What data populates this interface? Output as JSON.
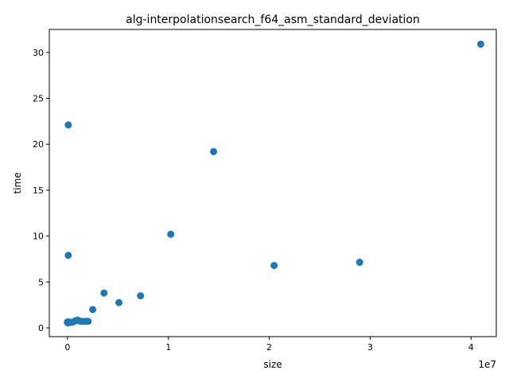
{
  "chart_data": {
    "type": "scatter",
    "title": "alg-interpolationsearch_f64_asm_standard_deviation",
    "xlabel": "size",
    "ylabel": "time",
    "x_offset_label": "1e7",
    "xlim": [
      -0.18,
      4.25
    ],
    "ylim": [
      -0.95,
      32.5
    ],
    "x_ticks": [
      0,
      1,
      2,
      3,
      4
    ],
    "x_tick_labels": [
      "0",
      "1",
      "2",
      "3",
      "4"
    ],
    "y_ticks": [
      0,
      5,
      10,
      15,
      20,
      25,
      30
    ],
    "y_tick_labels": [
      "0",
      "5",
      "10",
      "15",
      "20",
      "25",
      "30"
    ],
    "grid": false,
    "marker_color": "#1f77b4",
    "points": [
      {
        "x": 0.0001,
        "y": 0.65
      },
      {
        "x": 0.0002,
        "y": 0.62
      },
      {
        "x": 0.0004,
        "y": 0.6
      },
      {
        "x": 0.0008,
        "y": 0.58
      },
      {
        "x": 0.0016,
        "y": 0.6
      },
      {
        "x": 0.0032,
        "y": 0.62
      },
      {
        "x": 0.0064,
        "y": 0.55
      },
      {
        "x": 0.0128,
        "y": 0.6
      },
      {
        "x": 0.02,
        "y": 0.65
      },
      {
        "x": 0.0256,
        "y": 0.6
      },
      {
        "x": 0.0512,
        "y": 0.62
      },
      {
        "x": 0.0081,
        "y": 22.1
      },
      {
        "x": 0.0081,
        "y": 7.9
      },
      {
        "x": 0.0724,
        "y": 0.75
      },
      {
        "x": 0.1,
        "y": 0.8
      },
      {
        "x": 0.1,
        "y": 0.85
      },
      {
        "x": 0.12,
        "y": 0.75
      },
      {
        "x": 0.1448,
        "y": 0.7
      },
      {
        "x": 0.18,
        "y": 0.72
      },
      {
        "x": 0.2048,
        "y": 0.72
      },
      {
        "x": 0.25,
        "y": 2.0
      },
      {
        "x": 0.362,
        "y": 3.8
      },
      {
        "x": 0.51,
        "y": 2.75
      },
      {
        "x": 0.724,
        "y": 3.5
      },
      {
        "x": 1.024,
        "y": 10.2
      },
      {
        "x": 1.448,
        "y": 19.2
      },
      {
        "x": 2.048,
        "y": 6.8
      },
      {
        "x": 2.896,
        "y": 7.15
      },
      {
        "x": 4.096,
        "y": 30.9
      }
    ]
  }
}
